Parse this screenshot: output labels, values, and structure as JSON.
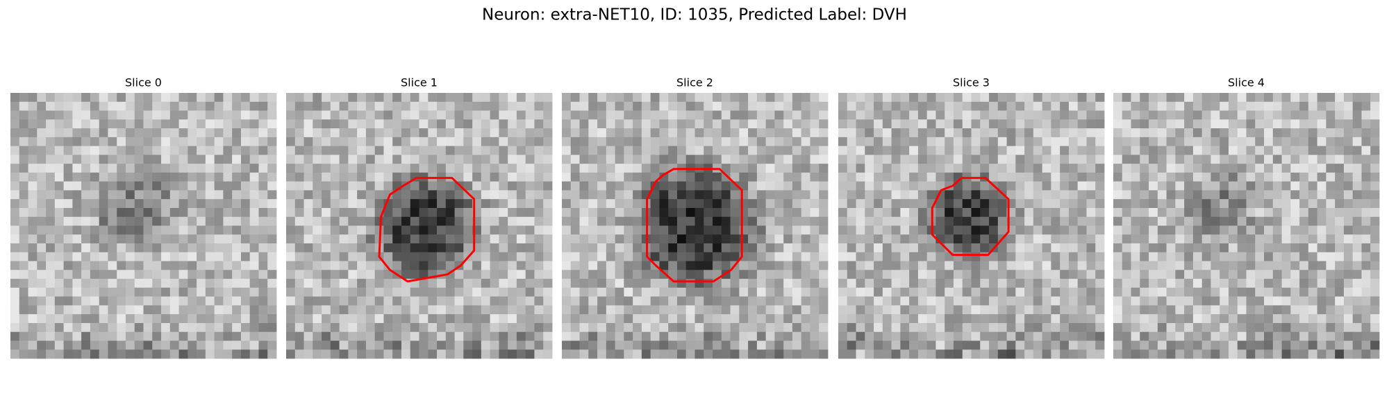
{
  "title": "Neuron: extra-NET10, ID: 1035, Predicted Label: DVH",
  "panels": [
    {
      "title": "Slice 0"
    },
    {
      "title": "Slice 1"
    },
    {
      "title": "Slice 2"
    },
    {
      "title": "Slice 3"
    },
    {
      "title": "Slice 4"
    }
  ]
}
